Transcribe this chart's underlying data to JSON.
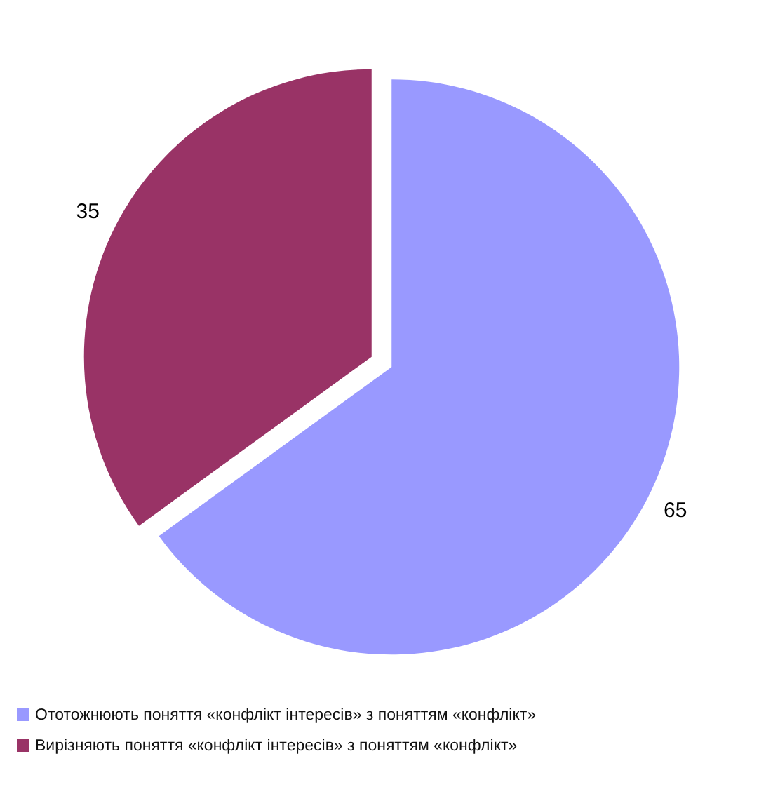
{
  "chart_data": {
    "type": "pie",
    "categories": [
      "Ототожнюють поняття «конфлікт інтересів» з поняттям «конфлікт»",
      "Вирізняють поняття «конфлікт інтересів» з поняттям «конфлікт»"
    ],
    "values": [
      65,
      35
    ],
    "colors": [
      "#9999ff",
      "#993366"
    ],
    "data_labels": true,
    "legend": "bottom"
  }
}
